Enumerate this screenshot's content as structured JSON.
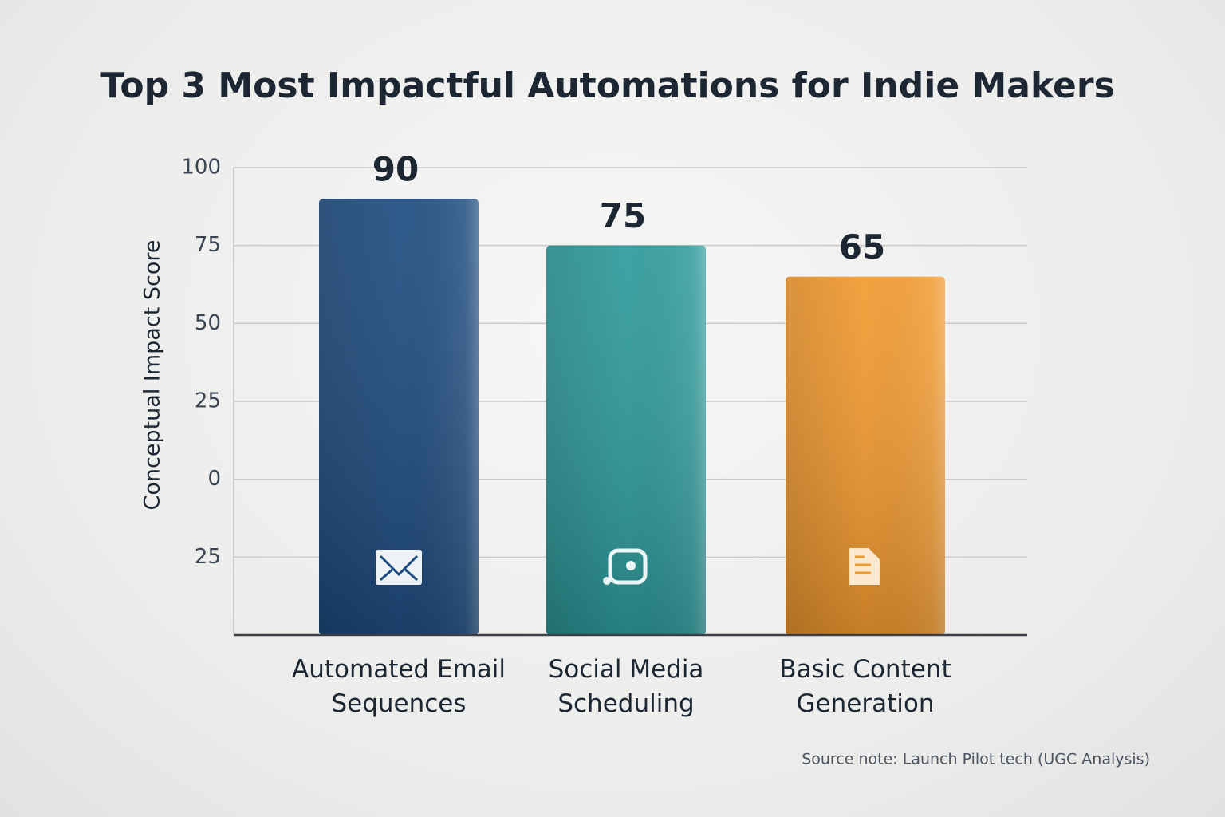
{
  "chart_data": {
    "type": "bar",
    "title": "Top 3 Most Impactful Automations for Indie Makers",
    "y_label": "Conceptual Impact Score",
    "categories": [
      "Automated Email Sequences",
      "Social Media Scheduling",
      "Basic Content Generation"
    ],
    "values": [
      90,
      75,
      65
    ],
    "colors": [
      "#1e4c80",
      "#2e9a9c",
      "#f29a2f"
    ],
    "ylim": [
      -50,
      100
    ],
    "yticks": [
      100,
      75,
      50,
      25,
      0,
      {
        "value": -25,
        "label": "25"
      }
    ],
    "grid": true,
    "source": "Source note: Launch Pilot tech (UGC Analysis)"
  }
}
